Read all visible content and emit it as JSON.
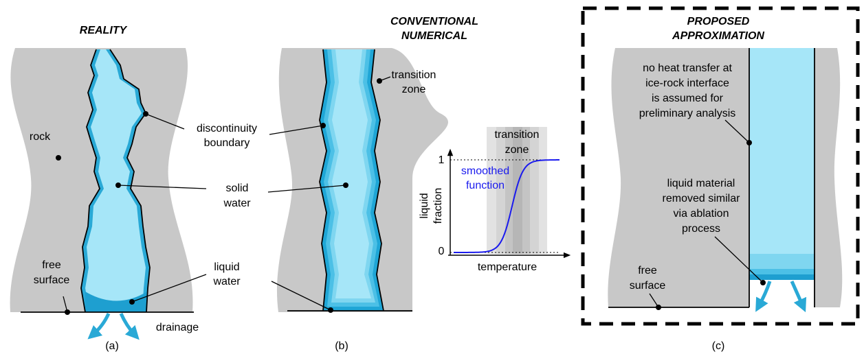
{
  "panel_a": {
    "title": "REALITY",
    "rock": "rock",
    "free_surface": [
      "free",
      "surface"
    ],
    "drainage": "drainage",
    "caption": "(a)"
  },
  "shared": {
    "discontinuity_boundary": [
      "discontinuity",
      "boundary"
    ],
    "solid_water": [
      "solid",
      "water"
    ],
    "liquid_water": [
      "liquid",
      "water"
    ]
  },
  "panel_b": {
    "title": [
      "CONVENTIONAL",
      "NUMERICAL"
    ],
    "transition_zone": [
      "transition",
      "zone"
    ],
    "caption": "(b)"
  },
  "inset": {
    "transition_zone": [
      "transition",
      "zone"
    ],
    "y_label": [
      "liquid",
      "fraction"
    ],
    "curve_label": [
      "smoothed",
      "function"
    ],
    "y_tick_top": "1",
    "y_tick_bottom": "0",
    "x_label": "temperature"
  },
  "panel_c": {
    "title": [
      "PROPOSED",
      "APPROXIMATION"
    ],
    "note_interface": [
      "no heat transfer at",
      "ice-rock interface",
      "is assumed for",
      "preliminary analysis"
    ],
    "note_ablation": [
      "liquid material",
      "removed similar",
      "via ablation",
      "process"
    ],
    "free_surface": [
      "free",
      "surface"
    ],
    "caption": "(c)"
  }
}
